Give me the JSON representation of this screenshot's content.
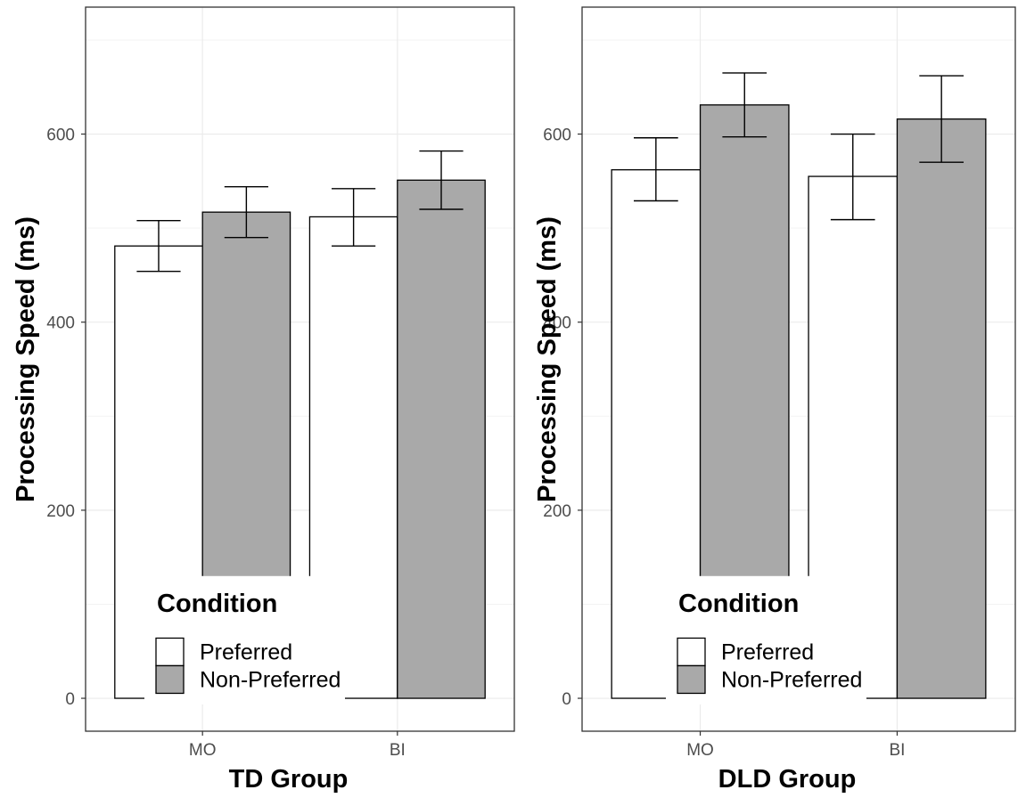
{
  "colors": {
    "preferred": "#ffffff",
    "non_preferred": "#a9a9a9",
    "grid_major": "#ebebeb",
    "grid_minor": "#f3f3f3",
    "panel_border": "#333333",
    "tick_text": "#4d4d4d"
  },
  "chart_data": [
    {
      "type": "bar",
      "title": "",
      "xlabel": "TD Group",
      "ylabel": "Processing Speed (ms)",
      "categories": [
        "MO",
        "BI"
      ],
      "ylim": [
        -35,
        735
      ],
      "yticks": [
        0,
        200,
        400,
        600
      ],
      "grid": true,
      "legend_position": "bottom-left",
      "legend_title": "Condition",
      "series": [
        {
          "name": "Preferred",
          "values": [
            481,
            512
          ],
          "error_low": [
            454,
            481
          ],
          "error_high": [
            508,
            542
          ]
        },
        {
          "name": "Non-Preferred",
          "values": [
            517,
            551
          ],
          "error_low": [
            490,
            520
          ],
          "error_high": [
            544,
            582
          ]
        }
      ]
    },
    {
      "type": "bar",
      "title": "",
      "xlabel": "DLD Group",
      "ylabel": "Processing Speed (ms)",
      "categories": [
        "MO",
        "BI"
      ],
      "ylim": [
        -35,
        735
      ],
      "yticks": [
        0,
        200,
        400,
        600
      ],
      "grid": true,
      "legend_position": "bottom-left",
      "legend_title": "Condition",
      "series": [
        {
          "name": "Preferred",
          "values": [
            562,
            555
          ],
          "error_low": [
            529,
            509
          ],
          "error_high": [
            596,
            600
          ]
        },
        {
          "name": "Non-Preferred",
          "values": [
            631,
            616
          ],
          "error_low": [
            597,
            570
          ],
          "error_high": [
            665,
            662
          ]
        }
      ]
    }
  ]
}
